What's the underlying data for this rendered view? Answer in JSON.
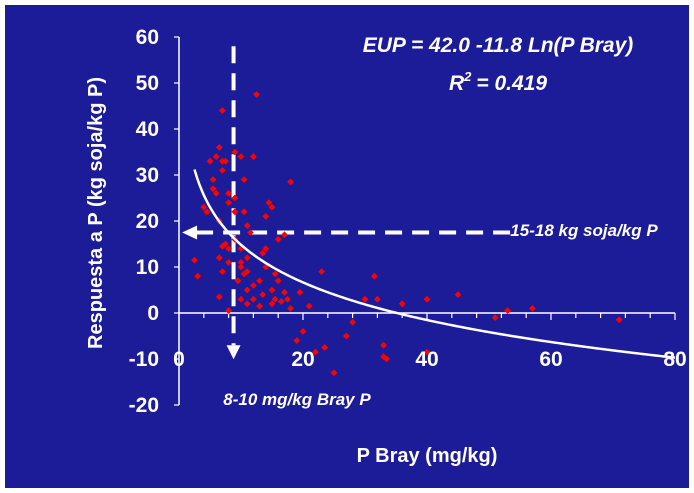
{
  "chart_data": {
    "type": "scatter",
    "title": "",
    "xlabel": "P Bray (mg/kg)",
    "ylabel": "Respuesta a P (kg soja/kg P)",
    "xlim": [
      0,
      80
    ],
    "ylim": [
      -20,
      60
    ],
    "xticks": [
      "0",
      "20",
      "40",
      "60",
      "80"
    ],
    "yticks": [
      "-20",
      "-10",
      "0",
      "10",
      "20",
      "30",
      "40",
      "50",
      "60"
    ],
    "grid": false,
    "legend": "none",
    "equation": "EUP = 42.0 -11.8 Ln(P Bray)",
    "r2_label": "R",
    "r2_sup": "2",
    "r2_value": "= 0.419",
    "annotation_y": "15-18 kg soja/kg P",
    "annotation_x": "8-10 mg/kg Bray P",
    "threshold_x": 8.8,
    "threshold_y": 17.5,
    "fit": {
      "type": "log",
      "a": 42.0,
      "b": -11.8,
      "x_range": [
        2.5,
        80
      ]
    },
    "colors": {
      "background": "#1c1c98",
      "point": "#ff0000",
      "curve": "#ffffff",
      "text": "#ffffff"
    },
    "points": [
      [
        2.5,
        11.5
      ],
      [
        3,
        8
      ],
      [
        4,
        23
      ],
      [
        4.5,
        22
      ],
      [
        5,
        33
      ],
      [
        5.5,
        29
      ],
      [
        5.5,
        27
      ],
      [
        6,
        34
      ],
      [
        6,
        26
      ],
      [
        6.5,
        36
      ],
      [
        6.5,
        20
      ],
      [
        6.5,
        12
      ],
      [
        6.5,
        3.5
      ],
      [
        7,
        44
      ],
      [
        7,
        33
      ],
      [
        7,
        31
      ],
      [
        7,
        14.5
      ],
      [
        7,
        9
      ],
      [
        7.5,
        33
      ],
      [
        7.5,
        15
      ],
      [
        8,
        26
      ],
      [
        8,
        24
      ],
      [
        8,
        14
      ],
      [
        8,
        11
      ],
      [
        8,
        0.5
      ],
      [
        9,
        35
      ],
      [
        9,
        25
      ],
      [
        9,
        22
      ],
      [
        9,
        16
      ],
      [
        9.5,
        7
      ],
      [
        10,
        34
      ],
      [
        10,
        14
      ],
      [
        10,
        11
      ],
      [
        10,
        10
      ],
      [
        10,
        3
      ],
      [
        10.5,
        29
      ],
      [
        10.5,
        22
      ],
      [
        10.5,
        8.5
      ],
      [
        11,
        19
      ],
      [
        11,
        12
      ],
      [
        11,
        9
      ],
      [
        11,
        5
      ],
      [
        11,
        2
      ],
      [
        11.5,
        17.5
      ],
      [
        12,
        34
      ],
      [
        12,
        6
      ],
      [
        12,
        3
      ],
      [
        12.5,
        47.5
      ],
      [
        13,
        1.5
      ],
      [
        13,
        7
      ],
      [
        13.5,
        13
      ],
      [
        13.5,
        4
      ],
      [
        14,
        21
      ],
      [
        14,
        14
      ],
      [
        14,
        10
      ],
      [
        14.5,
        24
      ],
      [
        15,
        23
      ],
      [
        15,
        5
      ],
      [
        15,
        2
      ],
      [
        15.5,
        8.5
      ],
      [
        15.5,
        3
      ],
      [
        16,
        16
      ],
      [
        16,
        7
      ],
      [
        16.5,
        2.5
      ],
      [
        17,
        17
      ],
      [
        17,
        4.5
      ],
      [
        17.5,
        3
      ],
      [
        18,
        28.5
      ],
      [
        18,
        1
      ],
      [
        19,
        -6
      ],
      [
        19.5,
        4.5
      ],
      [
        20,
        -4
      ],
      [
        21,
        1.5
      ],
      [
        22,
        -8.5
      ],
      [
        23,
        9
      ],
      [
        23.5,
        -7.5
      ],
      [
        25,
        -13
      ],
      [
        27,
        -5
      ],
      [
        28,
        -2
      ],
      [
        30,
        3
      ],
      [
        31.5,
        8
      ],
      [
        32,
        3
      ],
      [
        33,
        -9.5
      ],
      [
        33,
        -7
      ],
      [
        33.5,
        -10
      ],
      [
        36,
        2
      ],
      [
        40,
        3
      ],
      [
        40,
        -8.5
      ],
      [
        45,
        4
      ],
      [
        51,
        -1
      ],
      [
        53,
        0.5
      ],
      [
        57,
        1
      ],
      [
        71,
        -1.5
      ]
    ]
  }
}
